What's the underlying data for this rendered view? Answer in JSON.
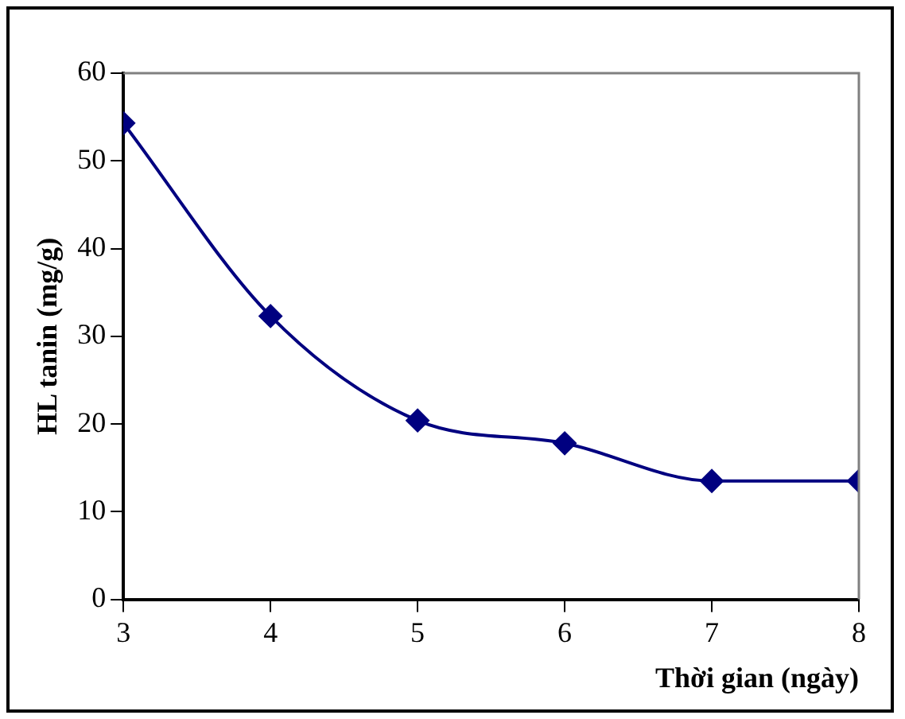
{
  "chart_data": {
    "type": "line",
    "xlabel": "Thời gian (ngày)",
    "ylabel": "HL tanin (mg/g)",
    "x": [
      3,
      4,
      5,
      6,
      7,
      8
    ],
    "series": [
      {
        "color": "#000080",
        "values": [
          54.3,
          32.3,
          20.4,
          17.8,
          13.5,
          13.5
        ]
      }
    ],
    "xlim": [
      3,
      8
    ],
    "xticks": [
      3,
      4,
      5,
      6,
      7,
      8
    ],
    "ylim": [
      0,
      60
    ],
    "yticks": [
      0,
      10,
      20,
      30,
      40,
      50,
      60
    ],
    "grid": false,
    "legend": false,
    "marker": "diamond",
    "line_style": "solid"
  }
}
